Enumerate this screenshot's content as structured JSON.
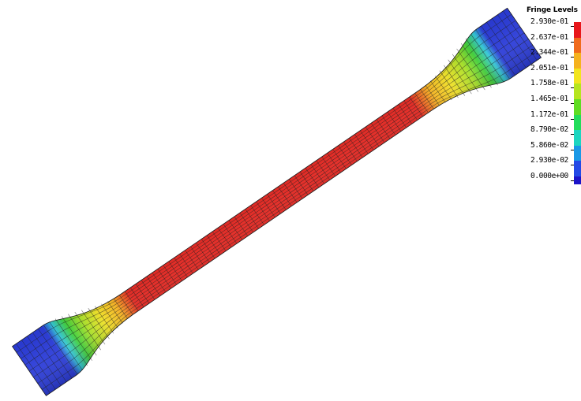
{
  "legend": {
    "title": "Fringe Levels",
    "levels": [
      "2.930e-01",
      "2.637e-01",
      "2.344e-01",
      "2.051e-01",
      "1.758e-01",
      "1.465e-01",
      "1.172e-01",
      "8.790e-02",
      "5.860e-02",
      "2.930e-02",
      "0.000e+00"
    ],
    "colors": [
      "#e8171b",
      "#f06a1c",
      "#f5b21f",
      "#f2e51e",
      "#b6e51f",
      "#5fdd22",
      "#22dd5a",
      "#1dd6c0",
      "#1a98e6",
      "#2349e6",
      "#1b14c8"
    ]
  },
  "specimen": {
    "colors": {
      "grip": "#2a3bd8",
      "grip_edge": "#33c7d9",
      "transition_1": "#3fcf3a",
      "transition_2": "#a8e026",
      "transition_3": "#f0e024",
      "transition_4": "#f4b11f",
      "gauge": "#e3241e",
      "mesh": "#222222"
    }
  }
}
